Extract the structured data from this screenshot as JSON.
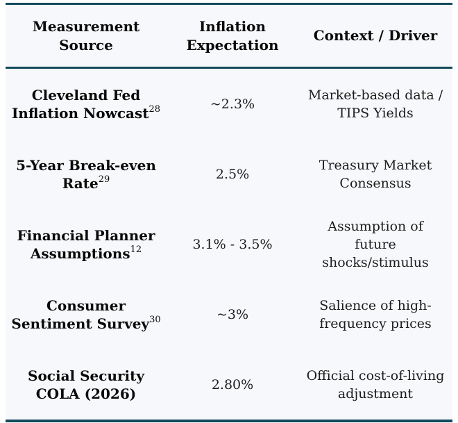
{
  "colors": {
    "border": "#134a5c",
    "table_background": "#f7f8fb",
    "header_text": "#0a0a0a",
    "body_text": "#1c1c1c"
  },
  "chart_data": {
    "type": "table",
    "columns": [
      "Measurement Source",
      "Inflation Expectation",
      "Context / Driver"
    ],
    "rows": [
      [
        "Cleveland Fed Inflation Nowcast²⁸",
        "~2.3%",
        "Market-based data / TIPS Yields"
      ],
      [
        "5-Year Break-even Rate²⁹",
        "2.5%",
        "Treasury Market Consensus"
      ],
      [
        "Financial Planner Assumptions¹²",
        "3.1% - 3.5%",
        "Assumption of future shocks/stimulus"
      ],
      [
        "Consumer Sentiment Survey³⁰",
        "~3%",
        "Salience of high-frequency prices"
      ],
      [
        "Social Security COLA (2026)",
        "2.80%",
        "Official cost-of-living adjustment"
      ]
    ]
  },
  "layout": {
    "headers": {
      "source": [
        "Measurement",
        "Source"
      ],
      "expectation": [
        "Inflation",
        "Expectation"
      ],
      "context": [
        "Context / Driver"
      ]
    },
    "rows": [
      {
        "source": [
          "Cleveland Fed",
          "Inflation Nowcast"
        ],
        "sup": "28",
        "expectation": "~2.3%",
        "context": [
          "Market-based data /",
          "TIPS Yields"
        ]
      },
      {
        "source": [
          "5-Year Break-even",
          "Rate"
        ],
        "sup": "29",
        "expectation": "2.5%",
        "context": [
          "Treasury Market",
          "Consensus"
        ]
      },
      {
        "source": [
          "Financial Planner",
          "Assumptions"
        ],
        "sup": "12",
        "expectation": "3.1% - 3.5%",
        "context": [
          "Assumption of",
          "future",
          "shocks/stimulus"
        ]
      },
      {
        "source": [
          "Consumer",
          "Sentiment Survey"
        ],
        "sup": "30",
        "expectation": "~3%",
        "context": [
          "Salience of high-",
          "frequency prices"
        ]
      },
      {
        "source": [
          "Social Security",
          "COLA (2026)"
        ],
        "sup": "",
        "expectation": "2.80%",
        "context": [
          "Official cost-of-living",
          "adjustment"
        ]
      }
    ]
  }
}
